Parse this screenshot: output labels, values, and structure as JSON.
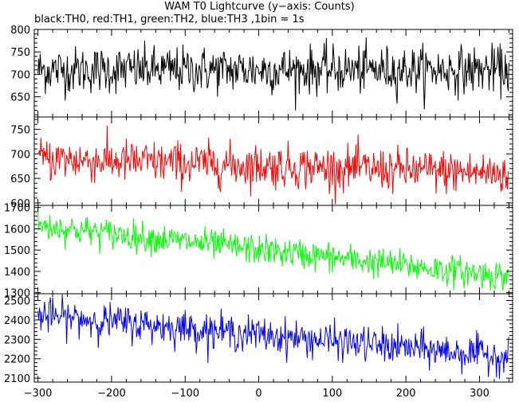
{
  "title": "WAM T0 Lightcurve (y−axis: Counts)",
  "subtitle": "black:TH0, red:TH1, green:TH2, blue:TH3 ,1bin = 1s",
  "chart_data": {
    "type": "line",
    "x_range": [
      -305,
      345
    ],
    "x_ticks": [
      -300,
      -200,
      -100,
      0,
      100,
      200,
      300
    ],
    "x_tick_labels": [
      "−300",
      "−200",
      "−100",
      "0",
      "100",
      "200",
      "300"
    ],
    "bin_seconds": 1,
    "panels": [
      {
        "name": "TH0",
        "color": "#000000",
        "ylim": [
          605,
          800
        ],
        "y_ticks": [
          650,
          700,
          750,
          800
        ],
        "trend": {
          "start": 710,
          "end": 710
        },
        "noise": 26
      },
      {
        "name": "TH1",
        "color": "#ff0000",
        "ylim": [
          595,
          775
        ],
        "y_ticks": [
          600,
          650,
          700,
          750
        ],
        "trend": {
          "start": 690,
          "end": 660
        },
        "noise": 22
      },
      {
        "name": "TH2",
        "color": "#00ff00",
        "ylim": [
          1295,
          1710
        ],
        "y_ticks": [
          1300,
          1400,
          1500,
          1600,
          1700
        ],
        "trend": {
          "start": 1615,
          "end": 1375
        },
        "noise": 35
      },
      {
        "name": "TH3",
        "color": "#0000ff",
        "ylim": [
          2080,
          2535
        ],
        "y_ticks": [
          2100,
          2200,
          2300,
          2400,
          2500
        ],
        "trend": {
          "start": 2425,
          "end": 2210
        },
        "noise": 45
      }
    ]
  }
}
